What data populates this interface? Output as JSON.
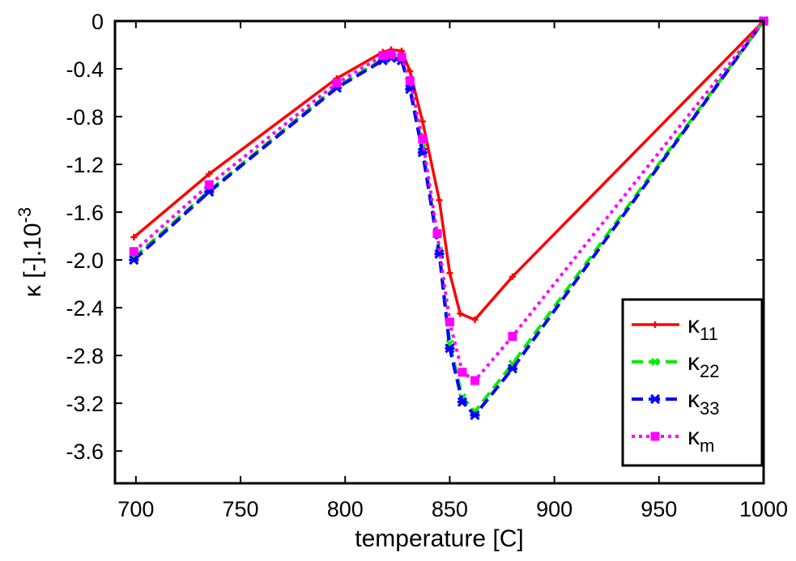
{
  "chart_data": {
    "type": "line",
    "xlabel": "temperature [C]",
    "ylabel": {
      "base": "κ [-].10",
      "exp": "-3"
    },
    "xlim": [
      690,
      1000
    ],
    "ylim": [
      -3.87,
      0
    ],
    "x_ticks": [
      700,
      750,
      800,
      850,
      900,
      950,
      1000
    ],
    "y_ticks": [
      0,
      -0.4,
      -0.8,
      -1.2,
      -1.6,
      -2.0,
      -2.4,
      -2.8,
      -3.2,
      -3.6
    ],
    "x_tick_labels": [
      "700",
      "750",
      "800",
      "850",
      "900",
      "950",
      "1000"
    ],
    "y_tick_labels": [
      "0",
      "-0.4",
      "-0.8",
      "-1.2",
      "-1.6",
      "-2.0",
      "-2.4",
      "-2.8",
      "-3.2",
      "-3.6"
    ],
    "grid": false,
    "legend_position": "bottom-right",
    "series": [
      {
        "name": "κ11",
        "label_main": "κ",
        "label_sub": "11",
        "color": "#ff0000",
        "line_style": "solid",
        "marker": "plus",
        "x": [
          699,
          735,
          796,
          818,
          822,
          827,
          831,
          837,
          845,
          850,
          855,
          862,
          880,
          1000
        ],
        "y": [
          -1.81,
          -1.28,
          -0.48,
          -0.26,
          -0.24,
          -0.25,
          -0.42,
          -0.84,
          -1.5,
          -2.11,
          -2.45,
          -2.5,
          -2.14,
          0
        ]
      },
      {
        "name": "κ22",
        "label_main": "κ",
        "label_sub": "22",
        "color": "#00ee00",
        "line_style": "dashed",
        "marker": "x",
        "x": [
          699,
          735,
          796,
          818,
          822,
          827,
          831,
          837,
          845,
          850,
          856,
          862,
          880,
          1000
        ],
        "y": [
          -1.98,
          -1.42,
          -0.55,
          -0.32,
          -0.3,
          -0.32,
          -0.54,
          -1.06,
          -1.92,
          -2.7,
          -3.15,
          -3.27,
          -2.87,
          0
        ]
      },
      {
        "name": "κ33",
        "label_main": "κ",
        "label_sub": "33",
        "color": "#0000ff",
        "line_style": "dashed",
        "marker": "asterisk",
        "x": [
          699,
          735,
          796,
          818,
          822,
          827,
          831,
          837,
          845,
          850,
          856,
          862,
          880,
          1000
        ],
        "y": [
          -2.0,
          -1.43,
          -0.56,
          -0.33,
          -0.31,
          -0.33,
          -0.57,
          -1.1,
          -1.95,
          -2.74,
          -3.19,
          -3.3,
          -2.91,
          0
        ]
      },
      {
        "name": "κm",
        "label_main": "κ",
        "label_sub": "m",
        "color": "#ff00ff",
        "line_style": "dotted",
        "marker": "square",
        "x": [
          699,
          735,
          796,
          818,
          822,
          827,
          831,
          837,
          844,
          850,
          856,
          862,
          880,
          1000
        ],
        "y": [
          -1.93,
          -1.37,
          -0.52,
          -0.29,
          -0.28,
          -0.3,
          -0.5,
          -0.99,
          -1.78,
          -2.52,
          -2.94,
          -3.01,
          -2.64,
          0
        ]
      }
    ]
  }
}
